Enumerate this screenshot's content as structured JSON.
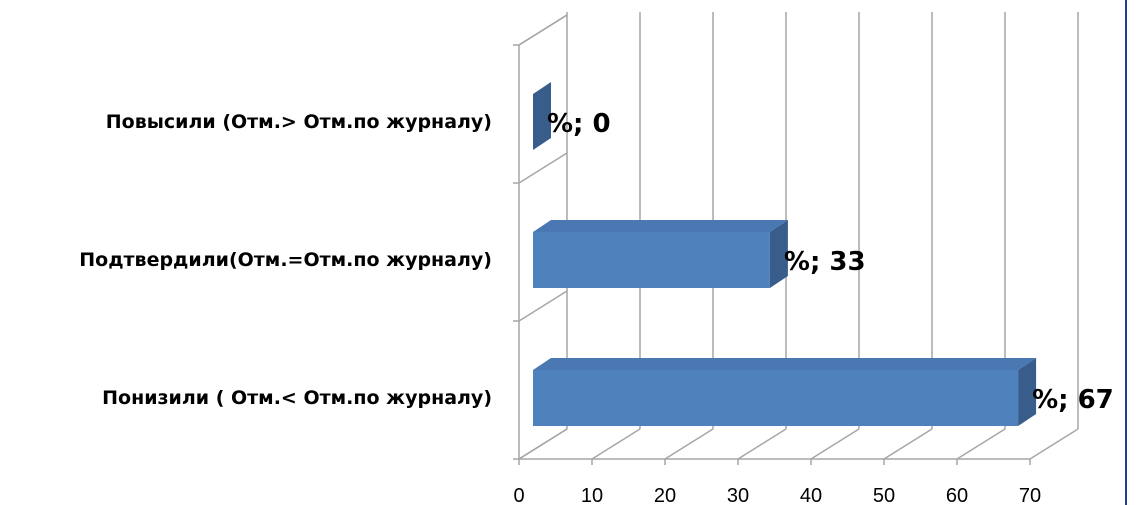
{
  "chart_data": {
    "type": "bar",
    "orientation": "horizontal",
    "three_d": true,
    "categories": [
      "Повысили (Отм.> Отм.по журналу)",
      "Подтвердили(Отм.=Отм.по журналу)",
      "Понизили ( Отм.< Отм.по журналу)"
    ],
    "values": [
      0,
      33,
      67
    ],
    "data_labels": [
      "%; 0",
      "%; 33",
      "%; 67"
    ],
    "xlim": [
      0,
      70
    ],
    "xticks": [
      "0",
      "10",
      "20",
      "30",
      "40",
      "50",
      "60",
      "70"
    ],
    "grid": true,
    "legend": "none",
    "colors": {
      "bar_front": "#4f81bd",
      "bar_top": "#4a78b2",
      "bar_side": "#385d8a",
      "grid": "#a6a6a6",
      "border": "#1f3f8f"
    }
  }
}
